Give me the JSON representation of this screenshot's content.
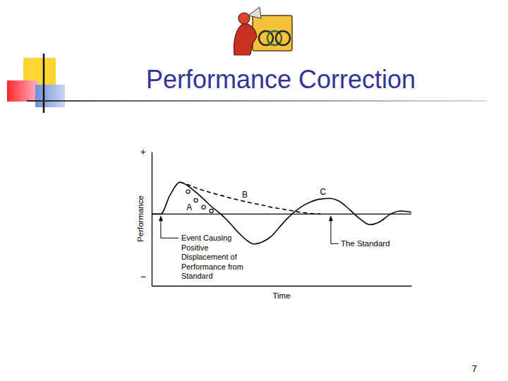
{
  "chart_data": {
    "type": "line",
    "title": "Performance Correction",
    "x_label": "Time",
    "y_label": "Performance",
    "x": [
      0,
      3.5,
      7,
      10.9,
      14,
      17,
      20,
      23,
      26.6,
      30,
      33,
      36,
      39.4,
      43,
      46,
      49,
      53,
      57,
      61,
      65,
      68.5,
      72,
      76,
      80,
      84,
      88,
      92,
      96,
      100
    ],
    "xlim": [
      0,
      100
    ],
    "ylim": [
      -1.15,
      1
    ],
    "yticks": [
      {
        "value": 1,
        "label": "+"
      },
      {
        "value": -1,
        "label": "−"
      }
    ],
    "tick_labels": "y",
    "series": [
      {
        "name": "A",
        "color": "#000000",
        "marker": "circle",
        "line_style": "none",
        "label_at": [
          14.5,
          0.11
        ],
        "values": [
          null,
          null,
          null,
          null,
          0.36,
          0.22,
          0.11,
          0.05,
          null,
          null,
          null,
          null,
          null,
          null,
          null,
          null,
          null,
          null,
          null,
          null,
          null,
          null,
          null,
          null,
          null,
          null,
          null,
          null,
          null
        ]
      },
      {
        "name": "B",
        "color": "#000000",
        "line_style": "dashed",
        "label_at": [
          35.9,
          0.31
        ],
        "values": [
          null,
          null,
          null,
          0.51,
          0.47,
          0.42,
          0.38,
          0.34,
          0.3,
          0.26,
          0.23,
          0.2,
          0.17,
          0.14,
          0.11,
          0.09,
          0.06,
          0.03,
          0.01,
          0,
          null,
          null,
          null,
          null,
          null,
          null,
          null,
          null,
          null
        ]
      },
      {
        "name": "C",
        "color": "#000000",
        "line_style": "solid",
        "label_at": [
          66,
          0.36
        ],
        "values": [
          0,
          0,
          0.3,
          0.51,
          0.45,
          0.35,
          0.24,
          0.12,
          0,
          -0.14,
          -0.28,
          -0.4,
          -0.48,
          -0.44,
          -0.36,
          -0.22,
          -0.04,
          0.1,
          0.19,
          0.24,
          0.25,
          0.21,
          0.08,
          -0.07,
          -0.17,
          -0.12,
          0,
          0.05,
          0.03
        ]
      }
    ],
    "hlines": [
      {
        "y": 0,
        "x": 69,
        "label": "The Standard"
      }
    ],
    "annotations": [
      {
        "text": "Event Causing Positive Displacement of Performance from Standard",
        "x": 3.5,
        "y": 0
      }
    ]
  },
  "page": {
    "number": 7
  }
}
